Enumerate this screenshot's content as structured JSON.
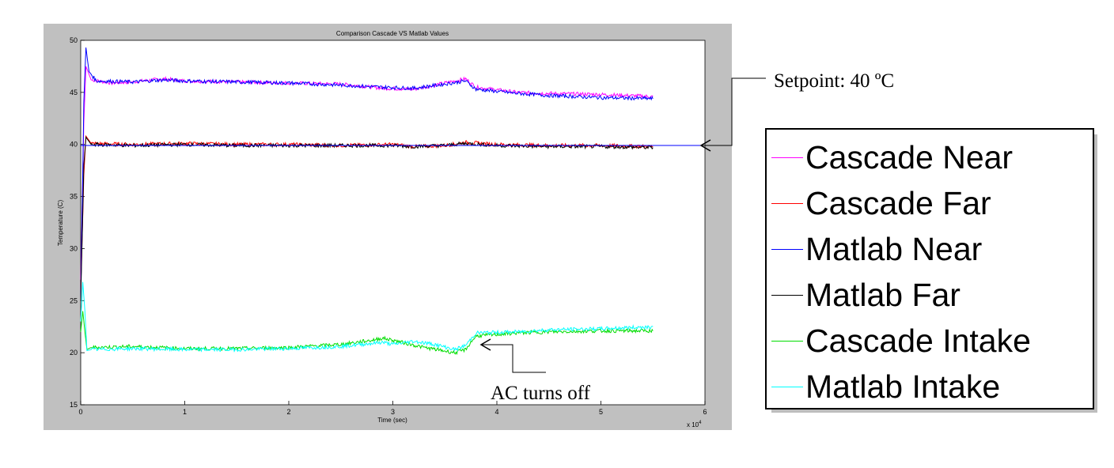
{
  "chart_data": {
    "type": "line",
    "title": "Comparison Cascade VS Matlab Values",
    "xlabel": "Time (sec)",
    "ylabel": "Temperature (C)",
    "x_exponent_label": "x 10",
    "x_exponent_power": "4",
    "xlim": [
      0,
      6
    ],
    "ylim": [
      15,
      50
    ],
    "x_ticks": [
      "0",
      "1",
      "2",
      "3",
      "4",
      "5",
      "6"
    ],
    "y_ticks": [
      "15",
      "20",
      "25",
      "30",
      "35",
      "40",
      "45",
      "50"
    ],
    "grid": false,
    "legend_position": "right-outside",
    "series": [
      {
        "name": "Cascade Near",
        "color": "#ff00ff",
        "x": [
          0,
          0.03,
          0.05,
          0.1,
          0.3,
          0.5,
          0.8,
          1.0,
          1.5,
          2.0,
          2.5,
          2.9,
          3.2,
          3.5,
          3.7,
          3.8,
          4.2,
          4.5,
          5.0,
          5.5
        ],
        "y": [
          27,
          42,
          47.5,
          46.2,
          45.9,
          46.0,
          46.3,
          46.1,
          46.0,
          45.9,
          45.8,
          45.4,
          45.3,
          45.9,
          46.3,
          45.5,
          45.0,
          44.9,
          44.8,
          44.6
        ]
      },
      {
        "name": "Cascade Far",
        "color": "#ff0000",
        "x": [
          0,
          0.03,
          0.05,
          0.1,
          0.5,
          1.0,
          1.5,
          2.0,
          2.5,
          3.0,
          3.2,
          3.5,
          3.7,
          4.0,
          4.5,
          5.0,
          5.5
        ],
        "y": [
          26,
          37,
          40.8,
          40.1,
          40.0,
          40.1,
          40.0,
          40.0,
          39.9,
          40.0,
          39.8,
          39.9,
          40.2,
          40.0,
          39.9,
          39.9,
          39.8
        ]
      },
      {
        "name": "Matlab Near",
        "color": "#0000ff",
        "x": [
          0,
          0.03,
          0.05,
          0.08,
          0.15,
          0.5,
          0.8,
          1.0,
          1.5,
          2.0,
          2.5,
          2.9,
          3.2,
          3.5,
          3.7,
          3.8,
          4.2,
          4.5,
          5.0,
          5.5
        ],
        "y": [
          25,
          44,
          49.3,
          47.0,
          46.1,
          46.0,
          46.2,
          46.1,
          46.0,
          45.9,
          45.7,
          45.5,
          45.4,
          45.8,
          46.1,
          45.3,
          44.9,
          44.7,
          44.5,
          44.4
        ]
      },
      {
        "name": "Matlab Far",
        "color": "#000000",
        "x": [
          0,
          0.03,
          0.05,
          0.1,
          0.5,
          1.0,
          1.5,
          2.0,
          2.5,
          3.0,
          3.2,
          3.5,
          3.7,
          4.0,
          4.5,
          5.0,
          5.5
        ],
        "y": [
          25,
          38,
          40.7,
          40.0,
          39.9,
          40.0,
          39.9,
          39.9,
          39.9,
          39.9,
          39.8,
          39.9,
          40.1,
          39.9,
          39.8,
          39.8,
          39.7
        ]
      },
      {
        "name": "Cascade Intake",
        "color": "#00dd00",
        "x": [
          0,
          0.02,
          0.04,
          0.06,
          0.1,
          0.5,
          1.0,
          1.5,
          2.0,
          2.5,
          2.8,
          2.9,
          3.0,
          3.3,
          3.6,
          3.7,
          3.75,
          3.8,
          4.2,
          4.5,
          5.0,
          5.5
        ],
        "y": [
          22,
          24,
          22,
          20.3,
          20.5,
          20.6,
          20.4,
          20.4,
          20.5,
          20.8,
          21.2,
          21.4,
          21.2,
          20.5,
          20.0,
          20.3,
          21.0,
          21.6,
          21.9,
          22.0,
          22.1,
          22.1
        ]
      },
      {
        "name": "Matlab Intake",
        "color": "#00ffff",
        "x": [
          0,
          0.02,
          0.04,
          0.06,
          0.1,
          0.5,
          1.0,
          1.5,
          2.0,
          2.5,
          2.8,
          2.9,
          3.0,
          3.2,
          3.4,
          3.6,
          3.7,
          3.75,
          3.8,
          4.2,
          4.5,
          5.0,
          5.5
        ],
        "y": [
          23,
          26.8,
          24,
          20.2,
          20.3,
          20.4,
          20.3,
          20.3,
          20.4,
          20.6,
          20.9,
          21.0,
          20.8,
          21.1,
          20.8,
          20.3,
          20.7,
          21.3,
          21.9,
          22.0,
          22.2,
          22.3,
          22.5
        ]
      },
      {
        "name": "",
        "color": "#0000ff",
        "x": [
          0,
          6
        ],
        "y": [
          39.9,
          39.9
        ]
      }
    ],
    "annotations": [
      {
        "text": "Setpoint: 40 ºC",
        "target_x": 6.0,
        "target_y": 39.9
      },
      {
        "text": "AC turns off",
        "target_x": 3.85,
        "target_y": 20.9
      }
    ]
  }
}
